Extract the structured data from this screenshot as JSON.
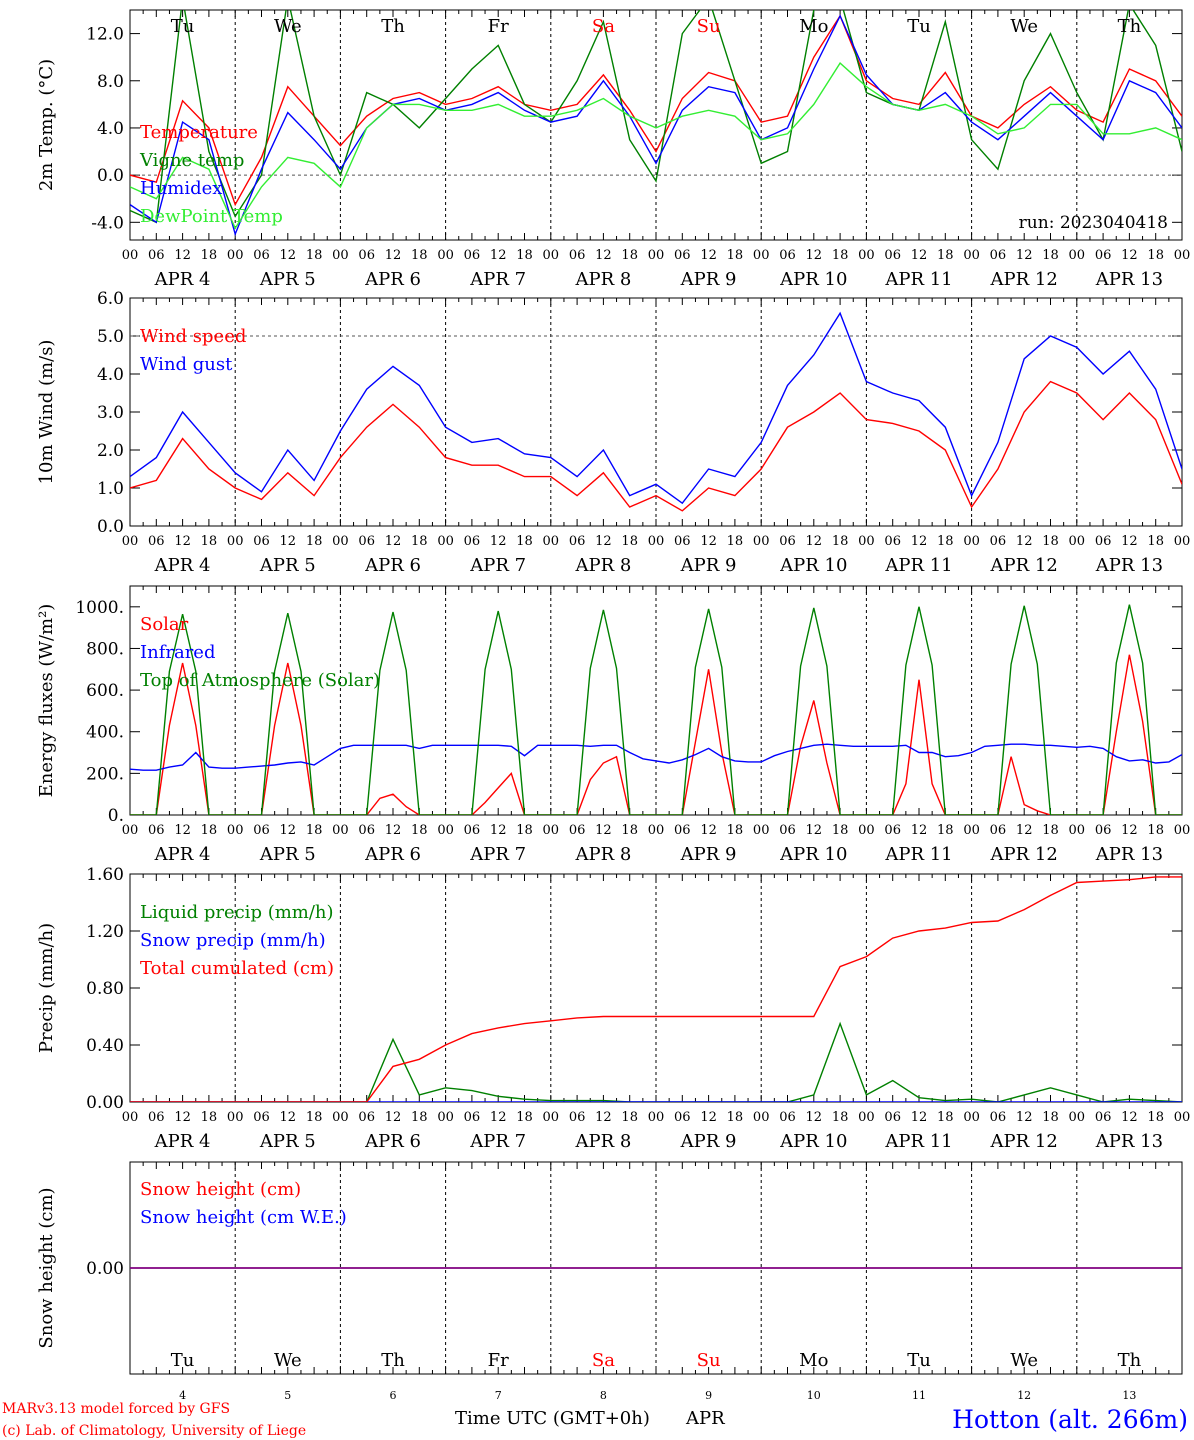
{
  "run_label": "run: 2023040418",
  "footer": {
    "model_line": "MARv3.13 model forced by GFS",
    "credit_line": "(c) Lab. of Climatology, University of Liege",
    "station": "Hotton (alt. 266m)",
    "time_axis_title": "Time UTC (GMT+0h)",
    "month": "APR"
  },
  "days": [
    {
      "date": "4",
      "label": "APR  4",
      "weekday": "Tu",
      "weekend": false
    },
    {
      "date": "5",
      "label": "APR  5",
      "weekday": "We",
      "weekend": false
    },
    {
      "date": "6",
      "label": "APR  6",
      "weekday": "Th",
      "weekend": false
    },
    {
      "date": "7",
      "label": "APR  7",
      "weekday": "Fr",
      "weekend": false
    },
    {
      "date": "8",
      "label": "APR  8",
      "weekday": "Sa",
      "weekend": true
    },
    {
      "date": "9",
      "label": "APR  9",
      "weekday": "Su",
      "weekend": true
    },
    {
      "date": "10",
      "label": "APR 10",
      "weekday": "Mo",
      "weekend": false
    },
    {
      "date": "11",
      "label": "APR 11",
      "weekday": "Tu",
      "weekend": false
    },
    {
      "date": "12",
      "label": "APR 12",
      "weekday": "We",
      "weekend": false
    },
    {
      "date": "13",
      "label": "APR 13",
      "weekday": "Th",
      "weekend": false
    }
  ],
  "hour_ticks": [
    "00",
    "06",
    "12",
    "18"
  ],
  "colors": {
    "red": "#ff0000",
    "darkgreen": "#008000",
    "blue": "#0000ff",
    "lightgreen": "#33ee33",
    "purple": "#800080",
    "station": "#0000ff"
  },
  "chart_data": [
    {
      "id": "temperature",
      "type": "line",
      "ylabel": "2m Temp. (°C)",
      "ylim": [
        -5.5,
        14.0
      ],
      "yticks": [
        -4.0,
        0.0,
        4.0,
        8.0,
        12.0
      ],
      "ytick_labels": [
        "-4.0",
        "0.0",
        "4.0",
        "8.0",
        "12.0"
      ],
      "hline": 0.0,
      "show_weekdays": true,
      "x": [
        0,
        6,
        12,
        18,
        24,
        30,
        36,
        42,
        48,
        54,
        60,
        66,
        72,
        78,
        84,
        90,
        96,
        102,
        108,
        114,
        120,
        126,
        132,
        138,
        144,
        150,
        156,
        162,
        168,
        174,
        180,
        186,
        192,
        198,
        204,
        210,
        216,
        222,
        228,
        234,
        240
      ],
      "series": [
        {
          "name": "Temperature",
          "color": "red",
          "values": [
            0.0,
            -0.6,
            6.3,
            4.0,
            -2.5,
            1.5,
            7.5,
            5.0,
            2.5,
            5.0,
            6.5,
            7.0,
            6.0,
            6.5,
            7.5,
            6.0,
            5.5,
            6.0,
            8.5,
            5.5,
            2.0,
            6.5,
            8.7,
            8.0,
            4.5,
            5.0,
            10.0,
            13.5,
            8.0,
            6.5,
            6.0,
            8.7,
            5.0,
            4.0,
            6.0,
            7.5,
            5.5,
            4.5,
            9.0,
            8.0,
            5.0
          ]
        },
        {
          "name": "Vigne temp",
          "color": "darkgreen",
          "values": [
            -3.0,
            -4.0,
            15.0,
            2.0,
            -3.5,
            0.0,
            15.0,
            5.0,
            0.0,
            7.0,
            6.0,
            4.0,
            6.5,
            9.0,
            11.0,
            6.0,
            4.5,
            8.0,
            13.0,
            3.0,
            -0.5,
            12.0,
            15.0,
            8.0,
            1.0,
            2.0,
            14.0,
            15.0,
            7.0,
            6.0,
            5.5,
            13.0,
            3.0,
            0.5,
            8.0,
            12.0,
            7.0,
            3.0,
            14.5,
            11.0,
            2.0
          ]
        },
        {
          "name": "Humidex",
          "color": "blue",
          "values": [
            -2.5,
            -4.0,
            4.5,
            3.0,
            -5.0,
            0.5,
            5.3,
            3.0,
            0.5,
            4.0,
            6.0,
            6.5,
            5.5,
            6.0,
            7.0,
            5.5,
            4.5,
            5.0,
            8.0,
            5.0,
            1.0,
            5.5,
            7.5,
            7.0,
            3.0,
            4.0,
            9.0,
            13.5,
            8.5,
            6.0,
            5.5,
            7.0,
            4.5,
            3.0,
            5.0,
            7.0,
            5.0,
            3.0,
            8.0,
            7.0,
            4.0
          ]
        },
        {
          "name": "DewPoint Temp",
          "color": "lightgreen",
          "values": [
            -1.0,
            -2.0,
            1.5,
            0.5,
            -4.5,
            -1.0,
            1.5,
            1.0,
            -1.0,
            4.0,
            6.0,
            6.0,
            5.5,
            5.5,
            6.0,
            5.0,
            5.0,
            5.5,
            6.5,
            5.0,
            4.0,
            5.0,
            5.5,
            5.0,
            3.0,
            3.5,
            6.0,
            9.5,
            7.5,
            6.0,
            5.5,
            6.0,
            5.0,
            3.5,
            4.0,
            6.0,
            6.0,
            3.5,
            3.5,
            4.0,
            3.0
          ]
        }
      ]
    },
    {
      "id": "wind",
      "type": "line",
      "ylabel": "10m Wind (m/s)",
      "ylim": [
        0.0,
        6.0
      ],
      "yticks": [
        0,
        1,
        2,
        3,
        4,
        5,
        6
      ],
      "ytick_labels": [
        "0.0",
        "1.0",
        "2.0",
        "3.0",
        "4.0",
        "5.0",
        "6.0"
      ],
      "hline": 5.0,
      "x": [
        0,
        6,
        12,
        18,
        24,
        30,
        36,
        42,
        48,
        54,
        60,
        66,
        72,
        78,
        84,
        90,
        96,
        102,
        108,
        114,
        120,
        126,
        132,
        138,
        144,
        150,
        156,
        162,
        168,
        174,
        180,
        186,
        192,
        198,
        204,
        210,
        216,
        222,
        228,
        234,
        240
      ],
      "series": [
        {
          "name": "Wind speed",
          "color": "red",
          "values": [
            1.0,
            1.2,
            2.3,
            1.5,
            1.0,
            0.7,
            1.4,
            0.8,
            1.8,
            2.6,
            3.2,
            2.6,
            1.8,
            1.6,
            1.6,
            1.3,
            1.3,
            0.8,
            1.4,
            0.5,
            0.8,
            0.4,
            1.0,
            0.8,
            1.5,
            2.6,
            3.0,
            3.5,
            2.8,
            2.7,
            2.5,
            2.0,
            0.5,
            1.5,
            3.0,
            3.8,
            3.5,
            2.8,
            3.5,
            2.8,
            1.1
          ]
        },
        {
          "name": "Wind gust",
          "color": "blue",
          "values": [
            1.3,
            1.8,
            3.0,
            2.2,
            1.4,
            0.9,
            2.0,
            1.2,
            2.5,
            3.6,
            4.2,
            3.7,
            2.6,
            2.2,
            2.3,
            1.9,
            1.8,
            1.3,
            2.0,
            0.8,
            1.1,
            0.6,
            1.5,
            1.3,
            2.2,
            3.7,
            4.5,
            5.6,
            3.8,
            3.5,
            3.3,
            2.6,
            0.8,
            2.2,
            4.4,
            5.0,
            4.7,
            4.0,
            4.6,
            3.6,
            1.5
          ]
        }
      ]
    },
    {
      "id": "energy",
      "type": "line",
      "ylabel": "Energy fluxes (W/m²)",
      "ylim": [
        0,
        1100
      ],
      "yticks": [
        0,
        200,
        400,
        600,
        800,
        1000
      ],
      "ytick_labels": [
        "0.",
        "200.",
        "400.",
        "600.",
        "800.",
        "1000."
      ],
      "x": [
        0,
        3,
        6,
        9,
        12,
        15,
        18,
        21,
        24,
        27,
        30,
        33,
        36,
        39,
        42,
        45,
        48,
        51,
        54,
        57,
        60,
        63,
        66,
        69,
        72,
        75,
        78,
        81,
        84,
        87,
        90,
        93,
        96,
        99,
        102,
        105,
        108,
        111,
        114,
        117,
        120,
        123,
        126,
        129,
        132,
        135,
        138,
        141,
        144,
        147,
        150,
        153,
        156,
        159,
        162,
        165,
        168,
        171,
        174,
        177,
        180,
        183,
        186,
        189,
        192,
        195,
        198,
        201,
        204,
        207,
        210,
        213,
        216,
        219,
        222,
        225,
        228,
        231,
        234,
        237,
        240
      ],
      "series": [
        {
          "name": "Solar",
          "color": "red",
          "values": [
            0,
            0,
            0,
            430,
            730,
            430,
            0,
            0,
            0,
            0,
            0,
            430,
            730,
            430,
            0,
            0,
            0,
            0,
            0,
            80,
            100,
            40,
            0,
            0,
            0,
            0,
            0,
            60,
            130,
            200,
            0,
            0,
            0,
            0,
            0,
            170,
            250,
            280,
            0,
            0,
            0,
            0,
            0,
            350,
            700,
            300,
            0,
            0,
            0,
            0,
            0,
            330,
            550,
            250,
            0,
            0,
            0,
            0,
            0,
            150,
            650,
            150,
            0,
            0,
            0,
            0,
            0,
            280,
            50,
            20,
            0,
            0,
            0,
            0,
            0,
            400,
            770,
            450,
            0,
            0,
            0
          ]
        },
        {
          "name": "Infrared",
          "color": "blue",
          "values": [
            220,
            215,
            215,
            230,
            240,
            300,
            230,
            225,
            225,
            230,
            235,
            240,
            250,
            255,
            240,
            280,
            320,
            335,
            335,
            335,
            335,
            335,
            320,
            335,
            335,
            335,
            335,
            335,
            335,
            330,
            285,
            335,
            335,
            335,
            335,
            330,
            335,
            335,
            300,
            270,
            260,
            250,
            265,
            290,
            320,
            280,
            260,
            255,
            255,
            285,
            305,
            320,
            335,
            340,
            335,
            330,
            330,
            330,
            330,
            335,
            300,
            300,
            280,
            285,
            300,
            330,
            335,
            340,
            340,
            335,
            335,
            330,
            325,
            330,
            320,
            280,
            260,
            265,
            250,
            255,
            290
          ]
        },
        {
          "name": "Top of Atmosphere (Solar)",
          "color": "darkgreen",
          "values": [
            0,
            0,
            0,
            690,
            965,
            690,
            0,
            0,
            0,
            0,
            0,
            690,
            970,
            690,
            0,
            0,
            0,
            0,
            0,
            695,
            975,
            695,
            0,
            0,
            0,
            0,
            0,
            700,
            980,
            700,
            0,
            0,
            0,
            0,
            0,
            705,
            985,
            705,
            0,
            0,
            0,
            0,
            0,
            710,
            990,
            710,
            0,
            0,
            0,
            0,
            0,
            715,
            995,
            715,
            0,
            0,
            0,
            0,
            0,
            720,
            1000,
            720,
            0,
            0,
            0,
            0,
            0,
            725,
            1005,
            725,
            0,
            0,
            0,
            0,
            0,
            730,
            1010,
            730,
            0,
            0,
            0
          ]
        }
      ]
    },
    {
      "id": "precip",
      "type": "line",
      "ylabel": "Precip (mm/h)",
      "ylim": [
        0.0,
        1.6
      ],
      "yticks": [
        0.0,
        0.4,
        0.8,
        1.2,
        1.6
      ],
      "ytick_labels": [
        "0.00",
        "0.40",
        "0.80",
        "1.20",
        "1.60"
      ],
      "x": [
        0,
        6,
        12,
        18,
        24,
        30,
        36,
        42,
        48,
        54,
        60,
        66,
        72,
        78,
        84,
        90,
        96,
        102,
        108,
        114,
        120,
        126,
        132,
        138,
        144,
        150,
        156,
        162,
        168,
        174,
        180,
        186,
        192,
        198,
        204,
        210,
        216,
        222,
        228,
        234,
        240
      ],
      "series": [
        {
          "name": "Liquid precip (mm/h)",
          "color": "darkgreen",
          "values": [
            0,
            0,
            0,
            0,
            0,
            0,
            0,
            0,
            0,
            0,
            0.44,
            0.05,
            0.1,
            0.08,
            0.04,
            0.02,
            0.01,
            0.01,
            0.01,
            0,
            0,
            0,
            0,
            0,
            0,
            0,
            0.05,
            0.55,
            0.05,
            0.15,
            0.03,
            0.01,
            0.02,
            0,
            0.05,
            0.1,
            0.05,
            0,
            0.02,
            0.01,
            0
          ]
        },
        {
          "name": "Snow precip (mm/h)",
          "color": "blue",
          "values": [
            0,
            0,
            0,
            0,
            0,
            0,
            0,
            0,
            0,
            0,
            0,
            0,
            0,
            0,
            0,
            0,
            0,
            0,
            0,
            0,
            0,
            0,
            0,
            0,
            0,
            0,
            0,
            0,
            0,
            0,
            0,
            0,
            0,
            0,
            0,
            0,
            0,
            0,
            0,
            0,
            0
          ]
        },
        {
          "name": "Total cumulated (cm)",
          "color": "red",
          "values": [
            0,
            0,
            0,
            0,
            0,
            0,
            0,
            0,
            0,
            0,
            0.25,
            0.3,
            0.4,
            0.48,
            0.52,
            0.55,
            0.57,
            0.59,
            0.6,
            0.6,
            0.6,
            0.6,
            0.6,
            0.6,
            0.6,
            0.6,
            0.6,
            0.95,
            1.02,
            1.15,
            1.2,
            1.22,
            1.26,
            1.27,
            1.35,
            1.45,
            1.54,
            1.55,
            1.56,
            1.58,
            1.58
          ]
        }
      ]
    },
    {
      "id": "snow",
      "type": "line",
      "ylabel": "Snow height (cm)",
      "ylim": [
        -1.0,
        1.0
      ],
      "yticks": [
        0.0
      ],
      "ytick_labels": [
        "0.00"
      ],
      "show_bottom_weekdays": true,
      "x": [
        0,
        240
      ],
      "series": [
        {
          "name": "Snow height (cm)",
          "color": "red",
          "values": [
            0,
            0
          ]
        },
        {
          "name": "Snow height (cm W.E.)",
          "color": "blue",
          "values": [
            0,
            0
          ]
        }
      ]
    }
  ]
}
